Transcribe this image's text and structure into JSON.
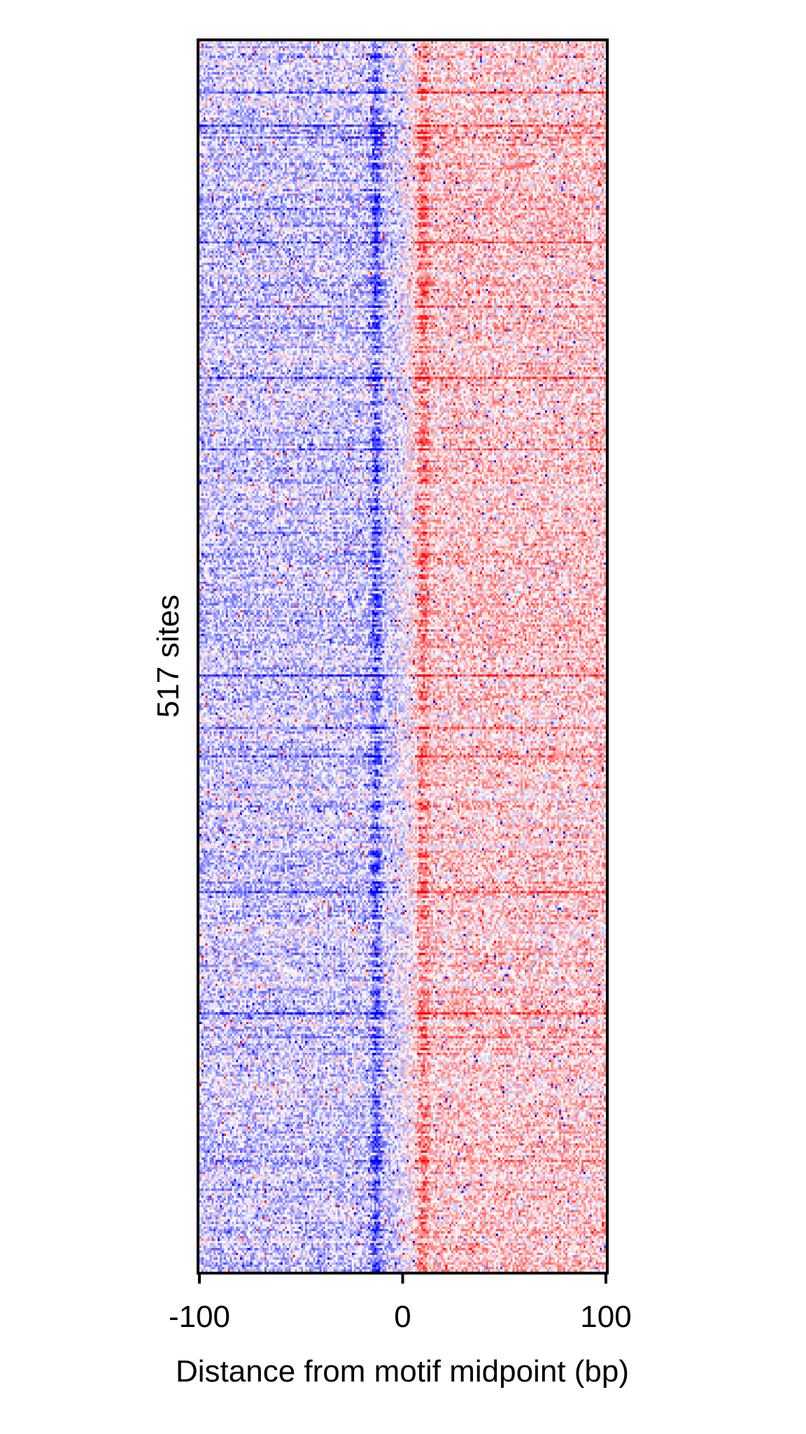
{
  "chart_data": {
    "type": "heatmap",
    "title": "",
    "xlabel": "Distance from motif midpoint (bp)",
    "ylabel": "517 sites",
    "xlim": [
      -100,
      100
    ],
    "x_ticks": [
      -100,
      0,
      100
    ],
    "x_tick_labels": [
      "-100",
      "0",
      "100"
    ],
    "n_rows": 517,
    "y_ticks": [],
    "colors": {
      "negative": "#0000ff",
      "positive": "#ff0000",
      "neutral": "#ffffff"
    },
    "features": [
      {
        "label": "blue enrichment band (left of motif)",
        "x": -13,
        "sign": "negative"
      },
      {
        "label": "red enrichment band (right of motif)",
        "x": 10,
        "sign": "positive"
      }
    ],
    "grid": false,
    "legend": "none"
  }
}
